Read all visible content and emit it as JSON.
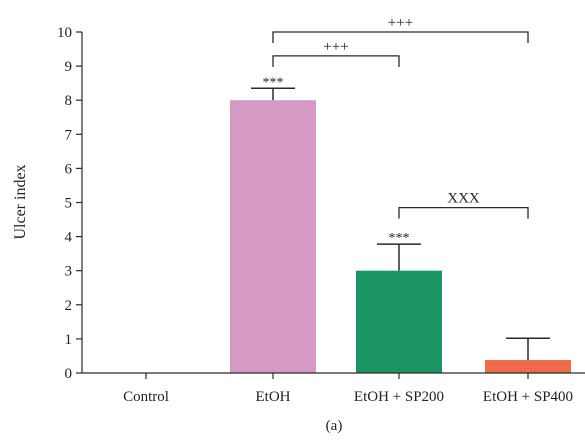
{
  "chart_data": {
    "type": "bar",
    "categories": [
      "Control",
      "EtOH",
      "EtOH + SP200",
      "EtOH + SP400"
    ],
    "values": [
      0,
      8.0,
      3.0,
      0.38
    ],
    "errors": [
      0,
      0.35,
      0.78,
      0.64
    ],
    "bar_colors": [
      "#ffffff",
      "#d49ac3",
      "#1a9460",
      "#ef6a4b"
    ],
    "bar_marks": [
      "",
      "***",
      "***",
      ""
    ],
    "ylabel": "Ulcer index",
    "xlabel": "",
    "ylim": [
      0,
      10
    ],
    "yticks": [
      0,
      1,
      2,
      3,
      4,
      5,
      6,
      7,
      8,
      9,
      10
    ],
    "comparisons": [
      {
        "from": 1,
        "to": 3,
        "label": "+++",
        "level": 10.0
      },
      {
        "from": 1,
        "to": 2,
        "label": "+++",
        "level": 9.3
      },
      {
        "from": 2,
        "to": 3,
        "label": "XXX",
        "level": 4.85
      }
    ],
    "grid": false
  },
  "caption": "(a)"
}
